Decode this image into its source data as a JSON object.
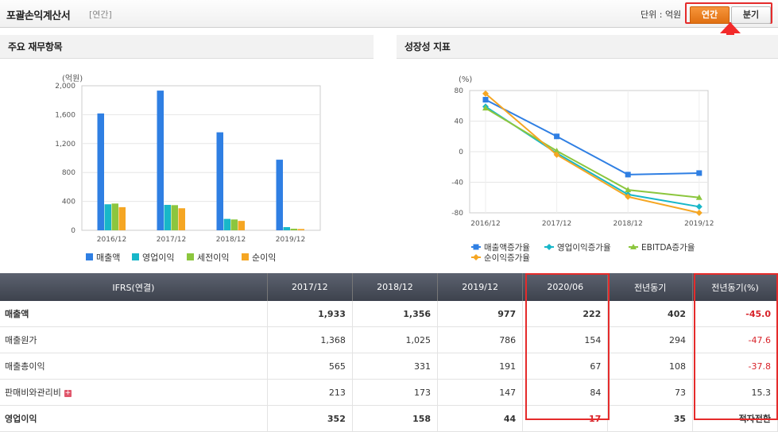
{
  "header": {
    "title": "포괄손익계산서",
    "subtitle": "[연간]",
    "unit": "단위 : 억원",
    "tabs": [
      {
        "label": "연간",
        "active": true
      },
      {
        "label": "분기",
        "active": false
      }
    ]
  },
  "panels": {
    "left_title": "주요 재무항목",
    "right_title": "성장성 지표"
  },
  "chart_data": [
    {
      "type": "bar",
      "title": "주요 재무항목",
      "ylabel": "(억원)",
      "categories": [
        "2016/12",
        "2017/12",
        "2018/12",
        "2019/12"
      ],
      "yticks": [
        "0",
        "400",
        "800",
        "1,200",
        "1,600",
        "2,000"
      ],
      "ylim": [
        0,
        2000
      ],
      "series": [
        {
          "name": "매출액",
          "color": "#2f7fe3",
          "values": [
            1617,
            1933,
            1356,
            977
          ]
        },
        {
          "name": "영업이익",
          "color": "#18b7c9",
          "values": [
            360,
            352,
            158,
            44
          ]
        },
        {
          "name": "세전이익",
          "color": "#8cc63e",
          "values": [
            370,
            348,
            150,
            22
          ]
        },
        {
          "name": "순이익",
          "color": "#f5a623",
          "values": [
            320,
            305,
            130,
            18
          ]
        }
      ],
      "legend": "bottom"
    },
    {
      "type": "line",
      "title": "성장성 지표",
      "ylabel": "(%)",
      "categories": [
        "2016/12",
        "2017/12",
        "2018/12",
        "2019/12"
      ],
      "yticks": [
        "-80",
        "-40",
        "0",
        "40",
        "80"
      ],
      "ylim": [
        -80,
        80
      ],
      "series": [
        {
          "name": "매출액증가율",
          "color": "#2f7fe3",
          "marker": "square",
          "values": [
            68,
            20,
            -30,
            -28
          ]
        },
        {
          "name": "영업이익증가율",
          "color": "#18b7c9",
          "marker": "diamond",
          "values": [
            59,
            -2,
            -56,
            -72
          ]
        },
        {
          "name": "EBITDA증가율",
          "color": "#8cc63e",
          "marker": "triangle",
          "values": [
            57,
            1,
            -50,
            -60
          ]
        },
        {
          "name": "순이익증가율",
          "color": "#f5a623",
          "marker": "diamond",
          "values": [
            76,
            -4,
            -59,
            -80
          ]
        }
      ],
      "legend": "bottom"
    }
  ],
  "table": {
    "headers": [
      "IFRS(연결)",
      "2017/12",
      "2018/12",
      "2019/12",
      "2020/06",
      "전년동기",
      "전년동기(%)"
    ],
    "rows": [
      {
        "label": "매출액",
        "bold": true,
        "expand": false,
        "values": [
          "1,933",
          "1,356",
          "977",
          "222",
          "402",
          "-45.0"
        ],
        "red": [
          false,
          false,
          false,
          false,
          false,
          true
        ]
      },
      {
        "label": "매출원가",
        "bold": false,
        "expand": false,
        "values": [
          "1,368",
          "1,025",
          "786",
          "154",
          "294",
          "-47.6"
        ],
        "red": [
          false,
          false,
          false,
          false,
          false,
          true
        ]
      },
      {
        "label": "매출총이익",
        "bold": false,
        "expand": false,
        "values": [
          "565",
          "331",
          "191",
          "67",
          "108",
          "-37.8"
        ],
        "red": [
          false,
          false,
          false,
          false,
          false,
          true
        ]
      },
      {
        "label": "판매비와관리비",
        "bold": false,
        "expand": true,
        "values": [
          "213",
          "173",
          "147",
          "84",
          "73",
          "15.3"
        ],
        "red": [
          false,
          false,
          false,
          false,
          false,
          false
        ]
      },
      {
        "label": "영업이익",
        "bold": true,
        "expand": false,
        "values": [
          "352",
          "158",
          "44",
          "-17",
          "35",
          "적자전환"
        ],
        "red": [
          false,
          false,
          false,
          true,
          false,
          false
        ]
      }
    ]
  }
}
